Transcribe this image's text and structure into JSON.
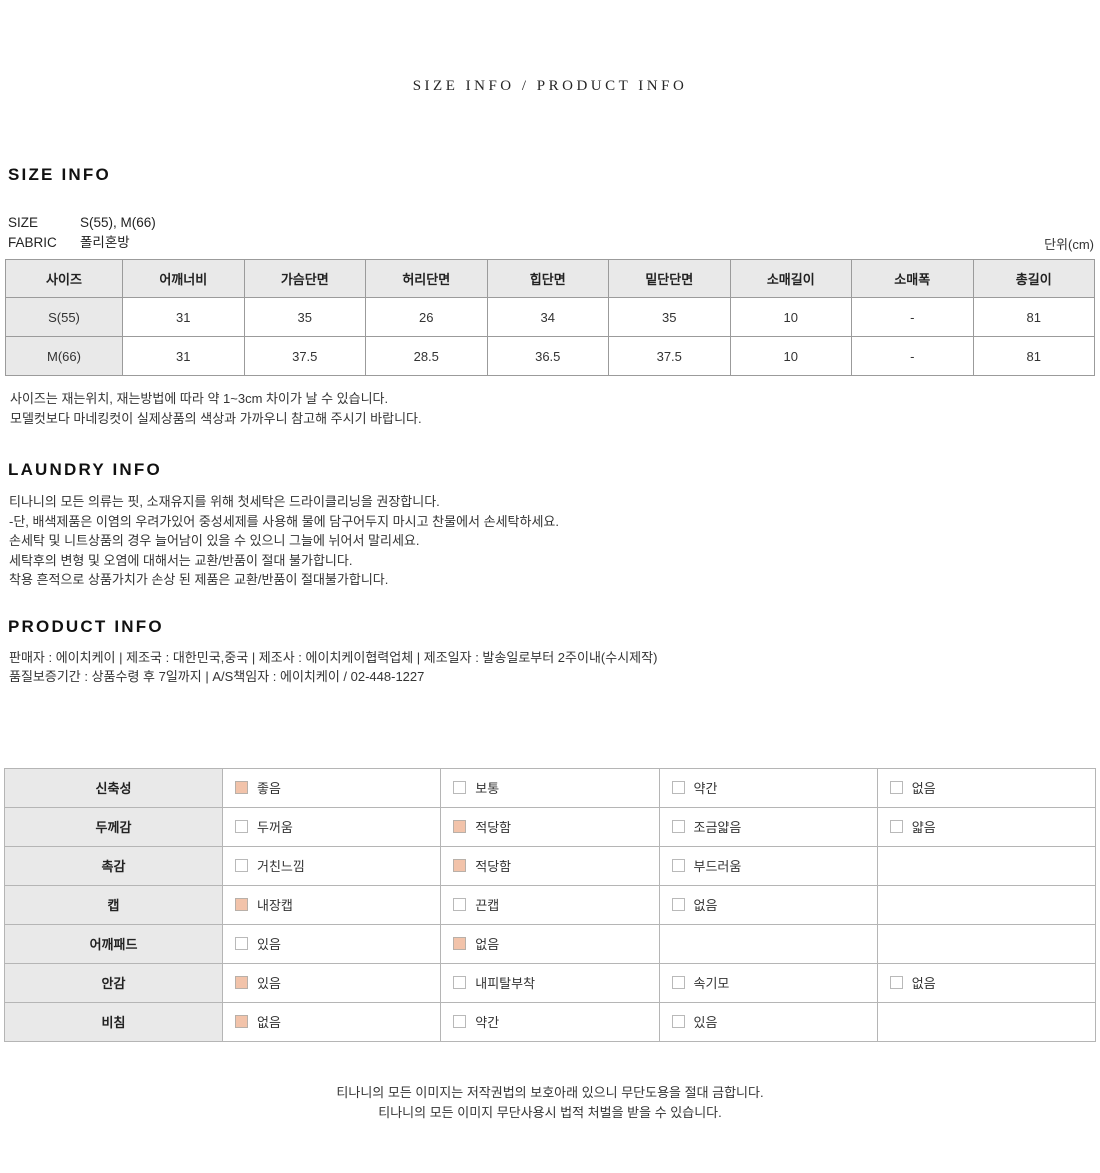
{
  "page_title": "SIZE INFO / PRODUCT INFO",
  "size_info": {
    "heading": "SIZE INFO",
    "meta": [
      {
        "label": "SIZE",
        "value": "S(55), M(66)"
      },
      {
        "label": "FABRIC",
        "value": "폴리혼방"
      }
    ],
    "unit_label": "단위(cm)",
    "table": {
      "headers": [
        "사이즈",
        "어깨너비",
        "가슴단면",
        "허리단면",
        "힙단면",
        "밑단단면",
        "소매길이",
        "소매폭",
        "총길이"
      ],
      "rows": [
        [
          "S(55)",
          "31",
          "35",
          "26",
          "34",
          "35",
          "10",
          "-",
          "81"
        ],
        [
          "M(66)",
          "31",
          "37.5",
          "28.5",
          "36.5",
          "37.5",
          "10",
          "-",
          "81"
        ]
      ]
    },
    "notes": [
      "사이즈는 재는위치, 재는방법에 따라 약 1~3cm 차이가 날 수 있습니다.",
      "모델컷보다 마네킹컷이 실제상품의 색상과 가까우니 참고해 주시기 바랍니다."
    ]
  },
  "laundry_info": {
    "heading": "LAUNDRY INFO",
    "lines": [
      "티나니의 모든 의류는 핏, 소재유지를 위해 첫세탁은 드라이클리닝을 권장합니다.",
      "-단, 배색제품은 이염의 우려가있어 중성세제를 사용해 물에 담구어두지 마시고 찬물에서 손세탁하세요.",
      "손세탁 및 니트상품의 경우 늘어남이 있을 수 있으니 그늘에 뉘어서 말리세요.",
      "세탁후의 변형 및 오염에 대해서는 교환/반품이 절대 불가합니다.",
      "착용 흔적으로 상품가치가 손상 된 제품은 교환/반품이 절대불가합니다."
    ]
  },
  "product_info": {
    "heading": "PRODUCT INFO",
    "lines": [
      "판매자 : 에이치케이 | 제조국 : 대한민국,중국 | 제조사 : 에이치케이협력업체 | 제조일자 : 발송일로부터 2주이내(수시제작)",
      "품질보증기간 : 상품수령 후 7일까지 | A/S책임자 : 에이치케이 / 02-448-1227"
    ]
  },
  "attributes": {
    "rows": [
      {
        "label": "신축성",
        "options": [
          {
            "text": "좋음",
            "checked": true
          },
          {
            "text": "보통",
            "checked": false
          },
          {
            "text": "약간",
            "checked": false
          },
          {
            "text": "없음",
            "checked": false
          }
        ]
      },
      {
        "label": "두께감",
        "options": [
          {
            "text": "두꺼움",
            "checked": false
          },
          {
            "text": "적당함",
            "checked": true
          },
          {
            "text": "조금얇음",
            "checked": false
          },
          {
            "text": "얇음",
            "checked": false
          }
        ]
      },
      {
        "label": "촉감",
        "options": [
          {
            "text": "거친느낌",
            "checked": false
          },
          {
            "text": "적당함",
            "checked": true
          },
          {
            "text": "부드러움",
            "checked": false
          }
        ]
      },
      {
        "label": "캡",
        "options": [
          {
            "text": "내장캡",
            "checked": true
          },
          {
            "text": "끈캡",
            "checked": false
          },
          {
            "text": "없음",
            "checked": false
          }
        ]
      },
      {
        "label": "어깨패드",
        "options": [
          {
            "text": "있음",
            "checked": false
          },
          {
            "text": "없음",
            "checked": true
          }
        ]
      },
      {
        "label": "안감",
        "options": [
          {
            "text": "있음",
            "checked": true
          },
          {
            "text": "내피탈부착",
            "checked": false
          },
          {
            "text": "속기모",
            "checked": false
          },
          {
            "text": "없음",
            "checked": false
          }
        ]
      },
      {
        "label": "비침",
        "options": [
          {
            "text": "없음",
            "checked": true
          },
          {
            "text": "약간",
            "checked": false
          },
          {
            "text": "있음",
            "checked": false
          }
        ]
      }
    ]
  },
  "footer": {
    "lines": [
      "티나니의 모든 이미지는 저작권법의 보호아래 있으니 무단도용을 절대 금합니다.",
      "티나니의 모든 이미지 무단사용시 법적 처벌을 받을 수 있습니다."
    ]
  },
  "colors": {
    "checked_checkbox": "#f2c3aa",
    "table_header_bg": "#e9e9e9",
    "size_table_border": "#9b9b9b",
    "attribute_table_border": "#b5b5b5"
  }
}
